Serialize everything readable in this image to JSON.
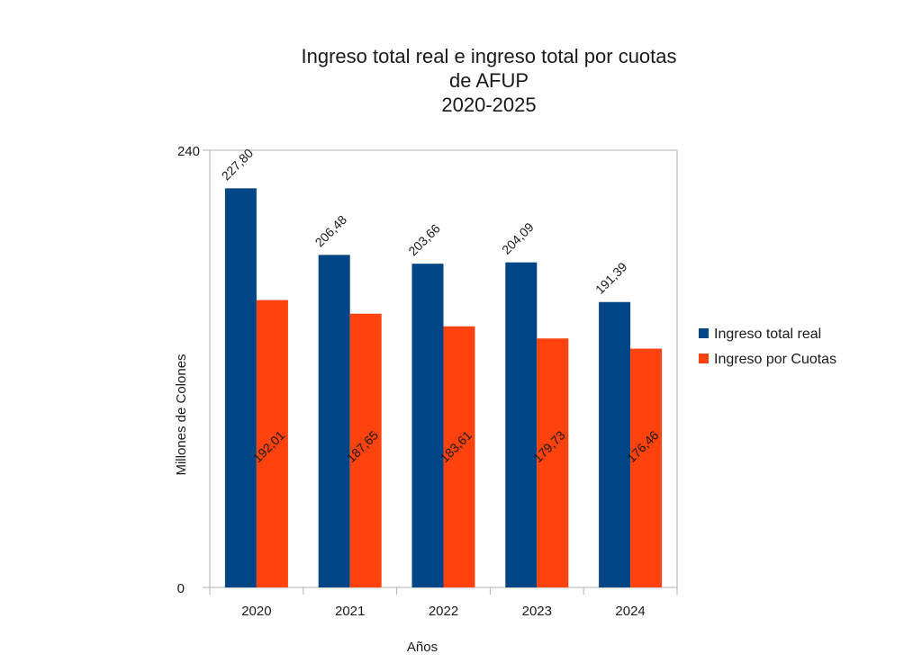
{
  "chart_data": {
    "type": "bar",
    "title": [
      "Ingreso total real e ingreso total por cuotas",
      "de AFUP",
      "2020-2025"
    ],
    "xlabel": "Años",
    "ylabel": "Millones de Colones",
    "categories": [
      "2020",
      "2021",
      "2022",
      "2023",
      "2024"
    ],
    "series": [
      {
        "name": "Ingreso total real",
        "color": "#004586",
        "values": [
          227.8,
          206.48,
          203.66,
          204.09,
          191.39
        ],
        "labels": [
          "227,80",
          "206,48",
          "203,66",
          "204,09",
          "191,39"
        ]
      },
      {
        "name": "Ingreso por Cuotas",
        "color": "#ff420e",
        "values": [
          192.01,
          187.65,
          183.61,
          179.73,
          176.46
        ],
        "labels": [
          "192,01",
          "187,65",
          "183,61",
          "179,73",
          "176,46"
        ]
      }
    ],
    "y_tick_labels": [
      "0",
      "240"
    ],
    "ylim": [
      100,
      240
    ],
    "grid": false,
    "legend": "right"
  }
}
